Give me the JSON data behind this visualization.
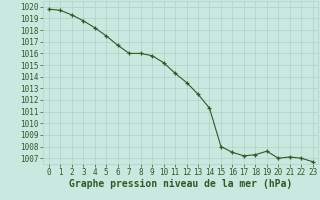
{
  "x": [
    0,
    1,
    2,
    3,
    4,
    5,
    6,
    7,
    8,
    9,
    10,
    11,
    12,
    13,
    14,
    15,
    16,
    17,
    18,
    19,
    20,
    21,
    22,
    23
  ],
  "y": [
    1019.8,
    1019.7,
    1019.3,
    1018.8,
    1018.2,
    1017.5,
    1016.7,
    1016.0,
    1016.0,
    1015.8,
    1015.2,
    1014.3,
    1013.5,
    1012.5,
    1011.3,
    1008.0,
    1007.5,
    1007.2,
    1007.3,
    1007.6,
    1007.0,
    1007.1,
    1007.0,
    1006.7
  ],
  "line_color": "#2d5a27",
  "marker": "+",
  "marker_color": "#2d5a27",
  "bg_color": "#c8e8e0",
  "grid_color": "#b0d0c8",
  "ylabel_ticks": [
    1007,
    1008,
    1009,
    1010,
    1011,
    1012,
    1013,
    1014,
    1015,
    1016,
    1017,
    1018,
    1019,
    1020
  ],
  "ylim": [
    1006.5,
    1020.5
  ],
  "xlim": [
    -0.5,
    23.5
  ],
  "xlabel": "Graphe pression niveau de la mer (hPa)",
  "xlabel_color": "#2d5a27",
  "tick_color": "#2d5a27",
  "tick_fontsize": 5.5,
  "xlabel_fontsize": 7.0
}
